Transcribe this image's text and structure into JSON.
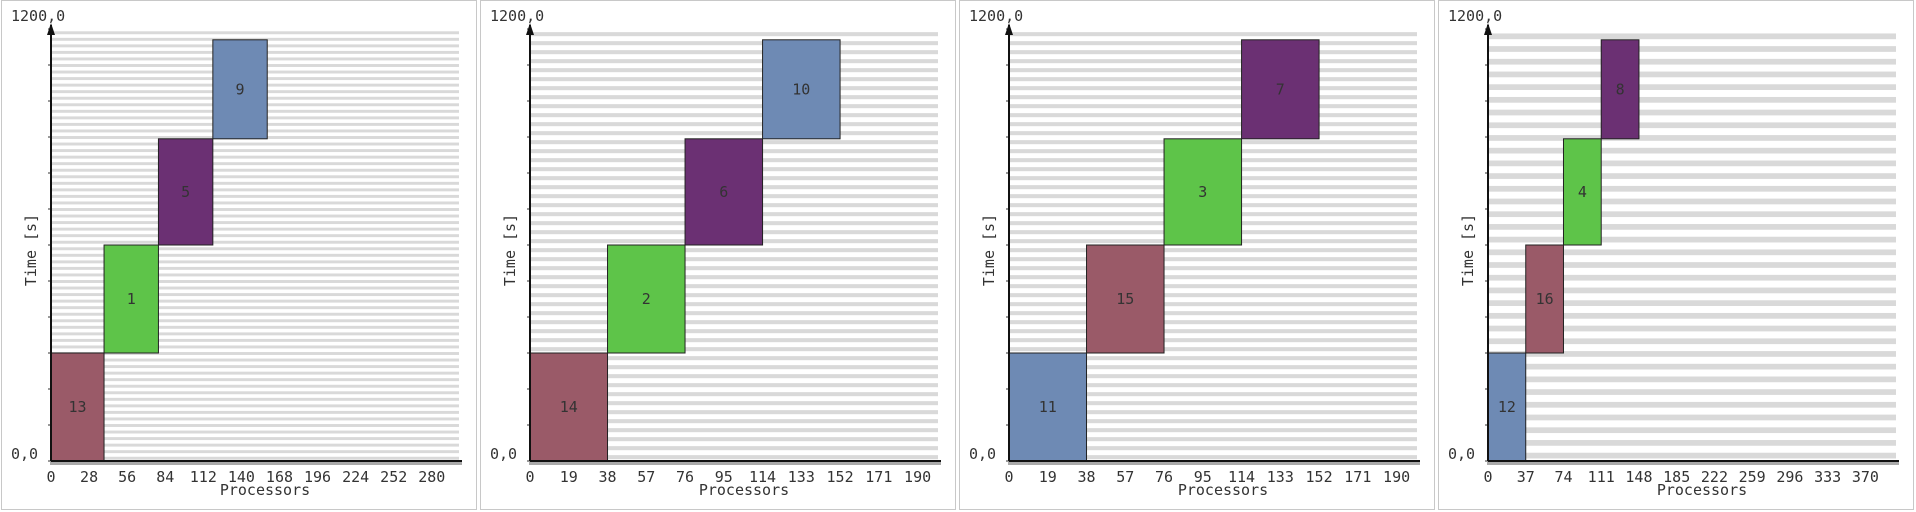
{
  "chart_data": [
    {
      "type": "gantt",
      "xlabel": "Processors",
      "ylabel": "Time [s]",
      "y_top_label": "1200,0",
      "y_bottom_label": "0,0",
      "ylim": [
        0,
        1200
      ],
      "xlim": [
        0,
        300
      ],
      "x_ticks": [
        "0",
        "28",
        "56",
        "84",
        "112",
        "140",
        "168",
        "196",
        "224",
        "252",
        "280"
      ],
      "x_tick_values": [
        0,
        28,
        56,
        84,
        112,
        140,
        168,
        196,
        224,
        252,
        280
      ],
      "grid": true,
      "grid_rows": 66,
      "tasks": [
        {
          "id": "13",
          "x0": 0,
          "x1": 39,
          "t0": 0,
          "t1": 300,
          "color": "#9a5a68"
        },
        {
          "id": "1",
          "x0": 39,
          "x1": 79,
          "t0": 300,
          "t1": 600,
          "color": "#5ec449"
        },
        {
          "id": "5",
          "x0": 79,
          "x1": 119,
          "t0": 600,
          "t1": 895,
          "color": "#6b3073"
        },
        {
          "id": "9",
          "x0": 119,
          "x1": 159,
          "t0": 895,
          "t1": 1170,
          "color": "#6e8ab4"
        }
      ]
    },
    {
      "type": "gantt",
      "xlabel": "Processors",
      "ylabel": "Time [s]",
      "y_top_label": "1200,0",
      "y_bottom_label": "0,0",
      "ylim": [
        0,
        1200
      ],
      "xlim": [
        0,
        200
      ],
      "x_ticks": [
        "0",
        "19",
        "38",
        "57",
        "76",
        "95",
        "114",
        "133",
        "152",
        "171",
        "190"
      ],
      "x_tick_values": [
        0,
        19,
        38,
        57,
        76,
        95,
        114,
        133,
        152,
        171,
        190
      ],
      "grid": true,
      "grid_rows": 48,
      "tasks": [
        {
          "id": "14",
          "x0": 0,
          "x1": 38,
          "t0": 0,
          "t1": 300,
          "color": "#9a5a68"
        },
        {
          "id": "2",
          "x0": 38,
          "x1": 76,
          "t0": 300,
          "t1": 600,
          "color": "#5ec449"
        },
        {
          "id": "6",
          "x0": 76,
          "x1": 114,
          "t0": 600,
          "t1": 895,
          "color": "#6b3073"
        },
        {
          "id": "10",
          "x0": 114,
          "x1": 152,
          "t0": 895,
          "t1": 1170,
          "color": "#6e8ab4"
        }
      ]
    },
    {
      "type": "gantt",
      "xlabel": "Processors",
      "ylabel": "Time [s]",
      "y_top_label": "1200,0",
      "y_bottom_label": "0,0",
      "ylim": [
        0,
        1200
      ],
      "xlim": [
        0,
        200
      ],
      "x_ticks": [
        "0",
        "19",
        "38",
        "57",
        "76",
        "95",
        "114",
        "133",
        "152",
        "171",
        "190"
      ],
      "x_tick_values": [
        0,
        19,
        38,
        57,
        76,
        95,
        114,
        133,
        152,
        171,
        190
      ],
      "grid": true,
      "grid_rows": 48,
      "tasks": [
        {
          "id": "11",
          "x0": 0,
          "x1": 38,
          "t0": 0,
          "t1": 300,
          "color": "#6e8ab4"
        },
        {
          "id": "15",
          "x0": 38,
          "x1": 76,
          "t0": 300,
          "t1": 600,
          "color": "#9a5a68"
        },
        {
          "id": "3",
          "x0": 76,
          "x1": 114,
          "t0": 600,
          "t1": 895,
          "color": "#5ec449"
        },
        {
          "id": "7",
          "x0": 114,
          "x1": 152,
          "t0": 895,
          "t1": 1170,
          "color": "#6b3073"
        }
      ]
    },
    {
      "type": "gantt",
      "xlabel": "Processors",
      "ylabel": "Time [s]",
      "y_top_label": "1200,0",
      "y_bottom_label": "0,0",
      "ylim": [
        0,
        1200
      ],
      "xlim": [
        0,
        400
      ],
      "x_ticks": [
        "0",
        "37",
        "74",
        "111",
        "148",
        "185",
        "222",
        "259",
        "296",
        "333",
        "370"
      ],
      "x_tick_values": [
        0,
        37,
        74,
        111,
        148,
        185,
        222,
        259,
        296,
        333,
        370
      ],
      "grid": true,
      "grid_rows": 34,
      "tasks": [
        {
          "id": "12",
          "x0": 0,
          "x1": 37,
          "t0": 0,
          "t1": 300,
          "color": "#6e8ab4"
        },
        {
          "id": "16",
          "x0": 37,
          "x1": 74,
          "t0": 300,
          "t1": 600,
          "color": "#9a5a68"
        },
        {
          "id": "4",
          "x0": 74,
          "x1": 111,
          "t0": 600,
          "t1": 895,
          "color": "#5ec449"
        },
        {
          "id": "8",
          "x0": 111,
          "x1": 148,
          "t0": 895,
          "t1": 1170,
          "color": "#6b3073"
        }
      ]
    }
  ]
}
